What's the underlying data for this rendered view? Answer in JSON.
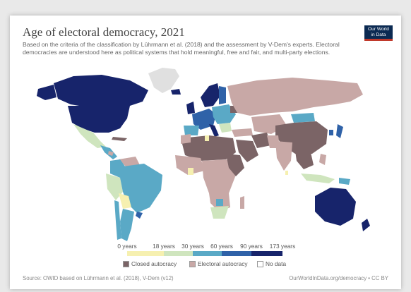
{
  "title": "Age of electoral democracy, 2021",
  "subtitle": "Based on the criteria of the classification by Lührmann et al. (2018) and the assessment by V-Dem's experts. Electoral democracies are understood here as political systems that hold meaningful, free and fair, and multi-party elections.",
  "logo": {
    "line1": "Our World",
    "line2": "in Data"
  },
  "legend": {
    "ticks": [
      "0 years",
      "18 years",
      "30 years",
      "60 years",
      "90 years",
      "173 years"
    ],
    "scale_colors": [
      "#f6f0b0",
      "#cfe5be",
      "#5aa9c6",
      "#2f62a8",
      "#17246b"
    ],
    "categories": [
      {
        "label": "Closed autocracy",
        "color": "#7b6466"
      },
      {
        "label": "Electoral autocracy",
        "color": "#c8a8a6"
      },
      {
        "label": "No data",
        "color": "#ffffff"
      }
    ]
  },
  "no_data_color": "#e0e0e0",
  "footer": {
    "source": "Source: OWID based on Lührmann et al. (2018), V-Dem (v12)",
    "credit": "OurWorldInData.org/democracy • CC BY"
  }
}
